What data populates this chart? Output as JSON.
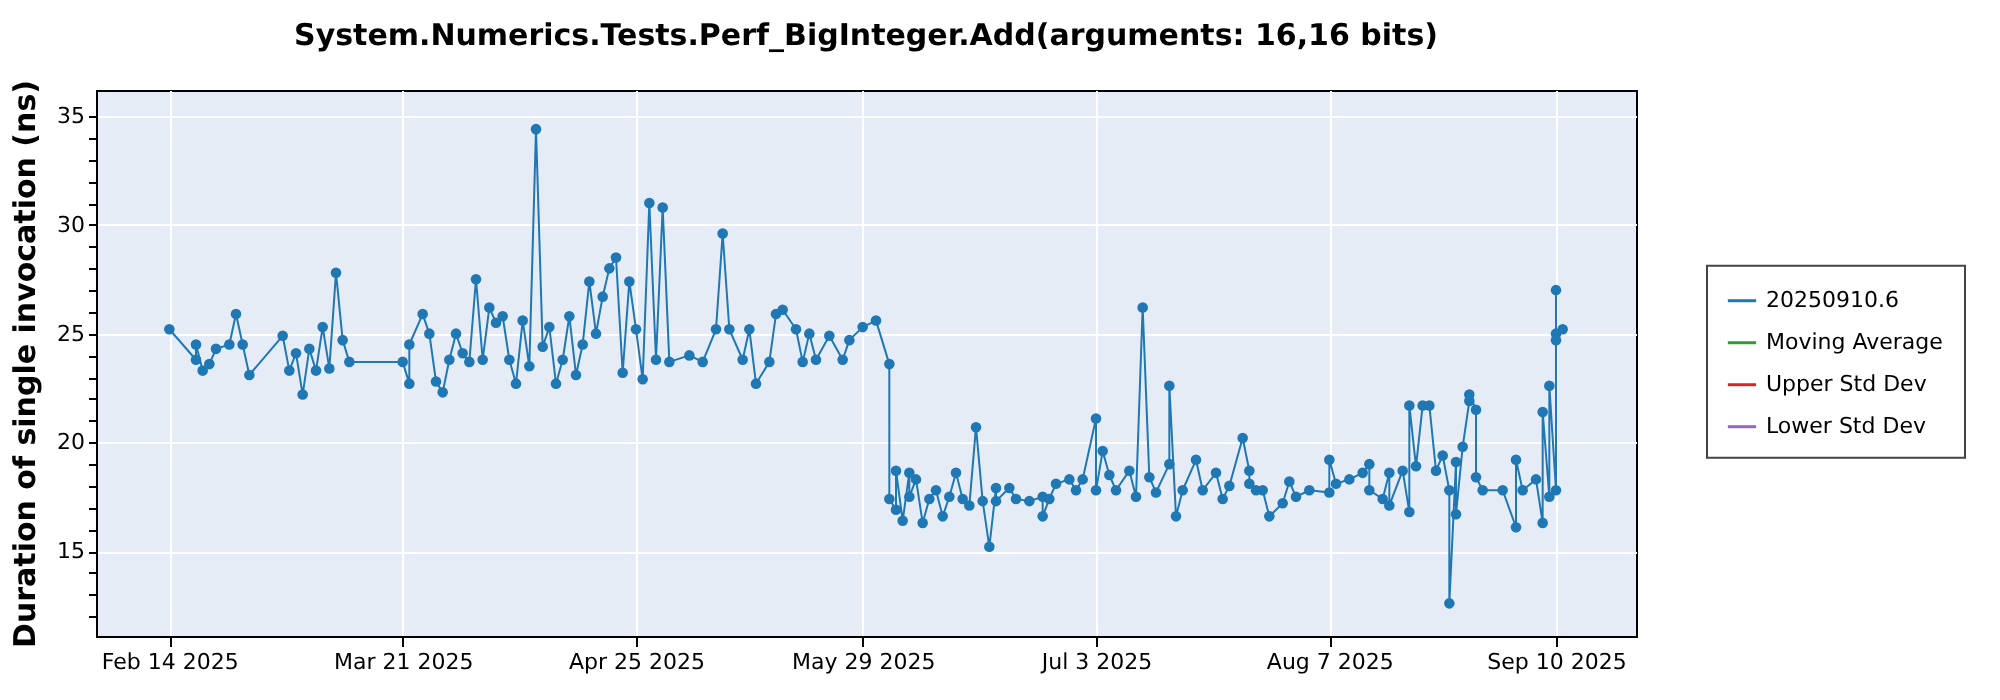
{
  "chart_data": {
    "type": "line",
    "title": "System.Numerics.Tests.Perf_BigInteger.Add(arguments: 16,16 bits)",
    "ylabel": "Duration of single invocation (ns)",
    "xlim": [
      "2025-02-03",
      "2025-09-22"
    ],
    "ylim": [
      11.1,
      36.2
    ],
    "xticks": [
      {
        "value": "2025-02-14",
        "label": "Feb 14 2025"
      },
      {
        "value": "2025-03-21",
        "label": "Mar 21 2025"
      },
      {
        "value": "2025-04-25",
        "label": "Apr 25 2025"
      },
      {
        "value": "2025-05-29",
        "label": "May 29 2025"
      },
      {
        "value": "2025-07-03",
        "label": "Jul 3 2025"
      },
      {
        "value": "2025-08-07",
        "label": "Aug 7 2025"
      },
      {
        "value": "2025-09-10",
        "label": "Sep 10 2025"
      }
    ],
    "yticks": [
      {
        "value": 12,
        "label": null
      },
      {
        "value": 13,
        "label": null
      },
      {
        "value": 14,
        "label": null
      },
      15,
      {
        "value": 16,
        "label": null
      },
      {
        "value": 17,
        "label": null
      },
      {
        "value": 18,
        "label": null
      },
      {
        "value": 19,
        "label": null
      },
      20,
      {
        "value": 21,
        "label": null
      },
      {
        "value": 22,
        "label": null
      },
      {
        "value": 23,
        "label": null
      },
      {
        "value": 24,
        "label": null
      },
      25,
      {
        "value": 26,
        "label": null
      },
      {
        "value": 27,
        "label": null
      },
      {
        "value": 28,
        "label": null
      },
      {
        "value": 29,
        "label": null
      },
      30,
      {
        "value": 31,
        "label": null
      },
      {
        "value": 32,
        "label": null
      },
      {
        "value": 33,
        "label": null
      },
      {
        "value": 34,
        "label": null
      },
      35
    ],
    "grid": true,
    "legend": "right",
    "marker": "circle",
    "line_style": "solid",
    "series": [
      {
        "name": "20250910.6",
        "color": "#1f77b4",
        "x": [
          "2025-02-14",
          "2025-02-18",
          "2025-02-18",
          "2025-02-19",
          "2025-02-20",
          "2025-02-21",
          "2025-02-23",
          "2025-02-24",
          "2025-02-25",
          "2025-02-26",
          "2025-03-03",
          "2025-03-04",
          "2025-03-05",
          "2025-03-06",
          "2025-03-07",
          "2025-03-08",
          "2025-03-09",
          "2025-03-10",
          "2025-03-11",
          "2025-03-12",
          "2025-03-13",
          "2025-03-21",
          "2025-03-22",
          "2025-03-22",
          "2025-03-24",
          "2025-03-25",
          "2025-03-26",
          "2025-03-27",
          "2025-03-28",
          "2025-03-29",
          "2025-03-30",
          "2025-03-31",
          "2025-04-01",
          "2025-04-02",
          "2025-04-03",
          "2025-04-04",
          "2025-04-05",
          "2025-04-06",
          "2025-04-07",
          "2025-04-08",
          "2025-04-09",
          "2025-04-10",
          "2025-04-11",
          "2025-04-12",
          "2025-04-13",
          "2025-04-14",
          "2025-04-15",
          "2025-04-16",
          "2025-04-17",
          "2025-04-18",
          "2025-04-19",
          "2025-04-20",
          "2025-04-21",
          "2025-04-22",
          "2025-04-23",
          "2025-04-24",
          "2025-04-25",
          "2025-04-26",
          "2025-04-27",
          "2025-04-28",
          "2025-04-29",
          "2025-04-30",
          "2025-05-03",
          "2025-05-05",
          "2025-05-07",
          "2025-05-08",
          "2025-05-09",
          "2025-05-11",
          "2025-05-12",
          "2025-05-13",
          "2025-05-15",
          "2025-05-16",
          "2025-05-17",
          "2025-05-19",
          "2025-05-20",
          "2025-05-21",
          "2025-05-22",
          "2025-05-24",
          "2025-05-26",
          "2025-05-27",
          "2025-05-29",
          "2025-05-31",
          "2025-06-02",
          "2025-06-02",
          "2025-06-03",
          "2025-06-03",
          "2025-06-04",
          "2025-06-05",
          "2025-06-05",
          "2025-06-06",
          "2025-06-07",
          "2025-06-08",
          "2025-06-09",
          "2025-06-10",
          "2025-06-11",
          "2025-06-12",
          "2025-06-13",
          "2025-06-14",
          "2025-06-15",
          "2025-06-16",
          "2025-06-17",
          "2025-06-18",
          "2025-06-18",
          "2025-06-20",
          "2025-06-21",
          "2025-06-23",
          "2025-06-25",
          "2025-06-25",
          "2025-06-26",
          "2025-06-27",
          "2025-06-29",
          "2025-06-30",
          "2025-07-01",
          "2025-07-03",
          "2025-07-03",
          "2025-07-04",
          "2025-07-05",
          "2025-07-06",
          "2025-07-08",
          "2025-07-09",
          "2025-07-10",
          "2025-07-11",
          "2025-07-12",
          "2025-07-14",
          "2025-07-14",
          "2025-07-15",
          "2025-07-16",
          "2025-07-18",
          "2025-07-19",
          "2025-07-21",
          "2025-07-22",
          "2025-07-23",
          "2025-07-25",
          "2025-07-26",
          "2025-07-26",
          "2025-07-27",
          "2025-07-28",
          "2025-07-29",
          "2025-07-31",
          "2025-08-01",
          "2025-08-02",
          "2025-08-04",
          "2025-08-07",
          "2025-08-07",
          "2025-08-08",
          "2025-08-10",
          "2025-08-12",
          "2025-08-13",
          "2025-08-13",
          "2025-08-15",
          "2025-08-16",
          "2025-08-16",
          "2025-08-18",
          "2025-08-19",
          "2025-08-19",
          "2025-08-20",
          "2025-08-21",
          "2025-08-22",
          "2025-08-23",
          "2025-08-24",
          "2025-08-25",
          "2025-08-25",
          "2025-08-26",
          "2025-08-26",
          "2025-08-27",
          "2025-08-28",
          "2025-08-28",
          "2025-08-29",
          "2025-08-29",
          "2025-08-30",
          "2025-09-02",
          "2025-09-04",
          "2025-09-04",
          "2025-09-05",
          "2025-09-07",
          "2025-09-08",
          "2025-09-08",
          "2025-09-09",
          "2025-09-09",
          "2025-09-10",
          "2025-09-10",
          "2025-09-10",
          "2025-09-10",
          "2025-09-11"
        ],
        "values": [
          25.2,
          23.8,
          24.5,
          23.3,
          23.6,
          24.3,
          24.5,
          25.9,
          24.5,
          23.1,
          24.9,
          23.3,
          24.1,
          22.2,
          24.3,
          23.3,
          25.3,
          23.4,
          27.8,
          24.7,
          23.7,
          23.7,
          22.7,
          24.5,
          25.9,
          25.0,
          22.8,
          22.3,
          23.8,
          25.0,
          24.1,
          23.7,
          27.5,
          23.8,
          26.2,
          25.5,
          25.8,
          23.8,
          22.7,
          25.6,
          23.5,
          34.4,
          24.4,
          25.3,
          22.7,
          23.8,
          25.8,
          23.1,
          24.5,
          27.4,
          25.0,
          26.7,
          28.0,
          28.5,
          23.2,
          27.4,
          25.2,
          22.9,
          31.0,
          23.8,
          30.8,
          23.7,
          24.0,
          23.7,
          25.2,
          29.6,
          25.2,
          23.8,
          25.2,
          22.7,
          23.7,
          25.9,
          26.1,
          25.2,
          23.7,
          25.0,
          23.8,
          24.9,
          23.8,
          24.7,
          25.3,
          25.6,
          23.6,
          17.4,
          16.9,
          18.7,
          16.4,
          18.6,
          17.5,
          18.3,
          16.3,
          17.4,
          17.8,
          16.6,
          17.5,
          18.6,
          17.4,
          17.1,
          20.7,
          17.3,
          15.2,
          17.9,
          17.3,
          17.9,
          17.4,
          17.3,
          17.5,
          16.6,
          17.4,
          18.1,
          18.3,
          17.8,
          18.3,
          21.1,
          17.8,
          19.6,
          18.5,
          17.8,
          18.7,
          17.5,
          26.2,
          18.4,
          17.7,
          19.0,
          22.6,
          16.6,
          17.8,
          19.2,
          17.8,
          18.6,
          17.4,
          18.0,
          20.2,
          18.7,
          18.1,
          17.8,
          17.8,
          16.6,
          17.2,
          18.2,
          17.5,
          17.8,
          17.7,
          19.2,
          18.1,
          18.3,
          18.6,
          19.0,
          17.8,
          17.4,
          18.6,
          17.1,
          18.7,
          16.8,
          21.7,
          18.9,
          21.7,
          21.7,
          18.7,
          19.4,
          17.8,
          12.6,
          19.1,
          16.7,
          19.8,
          21.9,
          22.2,
          21.5,
          18.4,
          17.8,
          17.8,
          16.1,
          19.2,
          17.8,
          18.3,
          16.3,
          21.4,
          17.5,
          22.6,
          17.8,
          27.0,
          25.0,
          24.7,
          25.2
        ]
      },
      {
        "name": "Moving Average",
        "color": "#2ca02c"
      },
      {
        "name": "Upper Std Dev",
        "color": "#d62728"
      },
      {
        "name": "Lower Std Dev",
        "color": "#9467bd"
      }
    ]
  }
}
